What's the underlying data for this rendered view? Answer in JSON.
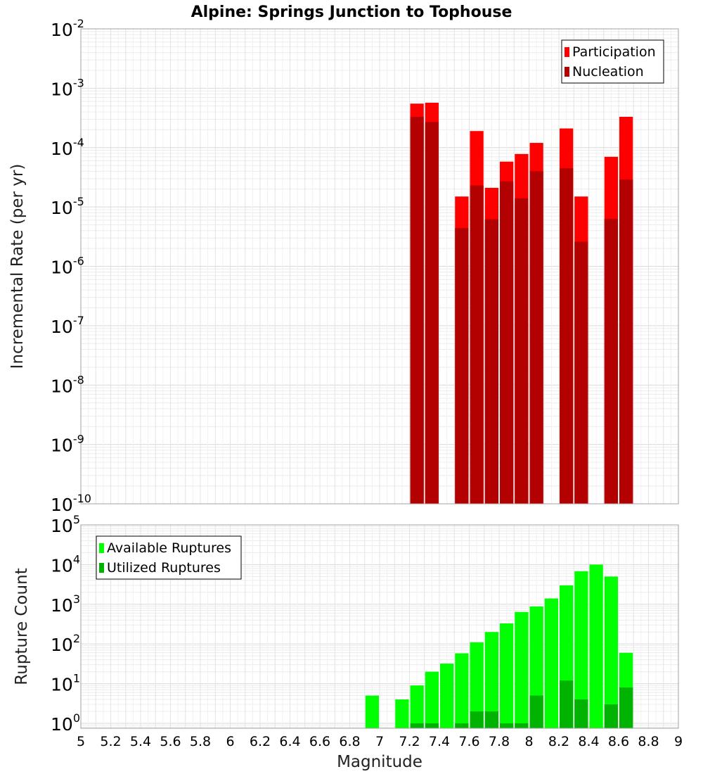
{
  "chart_data": {
    "type": "bar",
    "title": "Alpine: Springs Junction to Tophouse",
    "xlabel": "Magnitude",
    "xlim": [
      5,
      9
    ],
    "xticks": [
      "5",
      "5.2",
      "5.4",
      "5.6",
      "5.8",
      "6",
      "6.2",
      "6.4",
      "6.6",
      "6.8",
      "7",
      "7.2",
      "7.4",
      "7.6",
      "7.8",
      "8",
      "8.2",
      "8.4",
      "8.6",
      "8.8",
      "9"
    ],
    "bin_width": 0.1,
    "grid": true,
    "panels": [
      {
        "id": "rate",
        "ylabel": "Incremental Rate (per yr)",
        "yscale": "log",
        "ylim": [
          1e-10,
          0.01
        ],
        "ytick_exponents": [
          "-10",
          "-9",
          "-8",
          "-7",
          "-6",
          "-5",
          "-4",
          "-3",
          "-2"
        ],
        "legend_position": "top-right",
        "series": [
          {
            "name": "Participation",
            "color": "#ff0000",
            "x": [
              7.25,
              7.35,
              7.55,
              7.65,
              7.75,
              7.85,
              7.95,
              8.05,
              8.25,
              8.35,
              8.55,
              8.65
            ],
            "values": [
              0.00055,
              0.00057,
              1.5e-05,
              0.00019,
              2.1e-05,
              5.8e-05,
              7.8e-05,
              0.00012,
              0.00021,
              1.5e-05,
              7e-05,
              0.00033
            ]
          },
          {
            "name": "Nucleation",
            "color": "#b30000",
            "x": [
              7.25,
              7.35,
              7.55,
              7.65,
              7.75,
              7.85,
              7.95,
              8.05,
              8.25,
              8.35,
              8.55,
              8.65
            ],
            "values": [
              0.00033,
              0.00027,
              4.4e-06,
              2.3e-05,
              6.2e-06,
              2.7e-05,
              1.4e-05,
              4e-05,
              4.5e-05,
              2.6e-06,
              6.3e-06,
              2.9e-05
            ]
          }
        ]
      },
      {
        "id": "count",
        "ylabel": "Rupture Count",
        "yscale": "log",
        "ylim": [
          0.75,
          100000
        ],
        "ytick_exponents": [
          "0",
          "1",
          "2",
          "3",
          "4",
          "5"
        ],
        "legend_position": "top-left",
        "series": [
          {
            "name": "Available Ruptures",
            "color": "#00ff00",
            "x": [
              6.95,
              7.15,
              7.25,
              7.35,
              7.45,
              7.55,
              7.65,
              7.75,
              7.85,
              7.95,
              8.05,
              8.15,
              8.25,
              8.35,
              8.45,
              8.55,
              8.65
            ],
            "values": [
              5,
              4,
              9,
              20,
              32,
              58,
              110,
              200,
              330,
              640,
              880,
              1400,
              3000,
              6800,
              10000,
              5000,
              60
            ]
          },
          {
            "name": "Utilized Ruptures",
            "color": "#00b300",
            "x": [
              7.25,
              7.35,
              7.55,
              7.65,
              7.75,
              7.85,
              7.95,
              8.05,
              8.25,
              8.35,
              8.55,
              8.65
            ],
            "values": [
              1,
              1,
              1,
              2,
              2,
              1,
              1,
              5,
              12,
              4,
              3,
              8
            ]
          }
        ]
      }
    ]
  }
}
